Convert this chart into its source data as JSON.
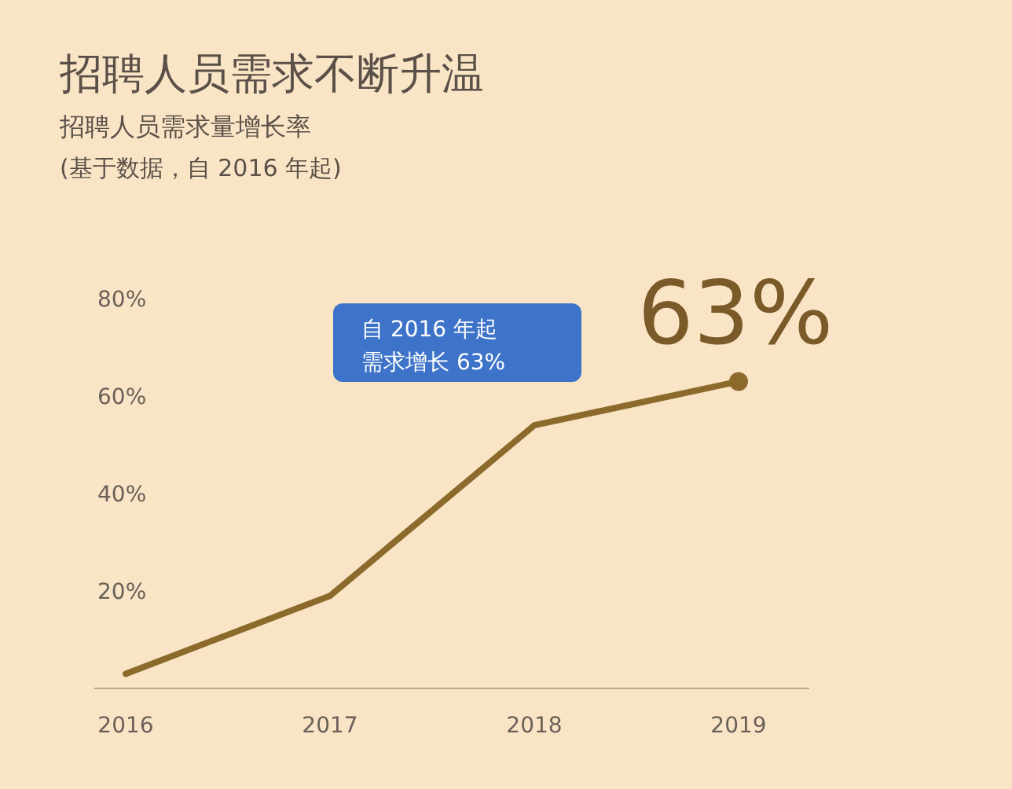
{
  "chart_data": {
    "type": "line",
    "title": "招聘人员需求不断升温",
    "subtitle": "招聘人员需求量增长率",
    "categories": [
      "2016",
      "2017",
      "2018",
      "2019"
    ],
    "series": [
      {
        "color": "#8c6a2c",
        "values": [
          3,
          19,
          54,
          63
        ]
      }
    ],
    "ylim": [
      0,
      80
    ],
    "yticks": [
      {
        "value": 20,
        "label": "20%"
      },
      {
        "value": 40,
        "label": "40%"
      },
      {
        "value": 60,
        "label": "60%"
      },
      {
        "value": 80,
        "label": "80%"
      }
    ],
    "grid": false,
    "marker": "none",
    "line_style": "solid",
    "annotations": [
      "(基于数据，自 2016 年起)",
      {
        "text": "63%",
        "x": "2019",
        "y": 63
      },
      "自 2016 年起",
      "需求增长 63%"
    ]
  }
}
